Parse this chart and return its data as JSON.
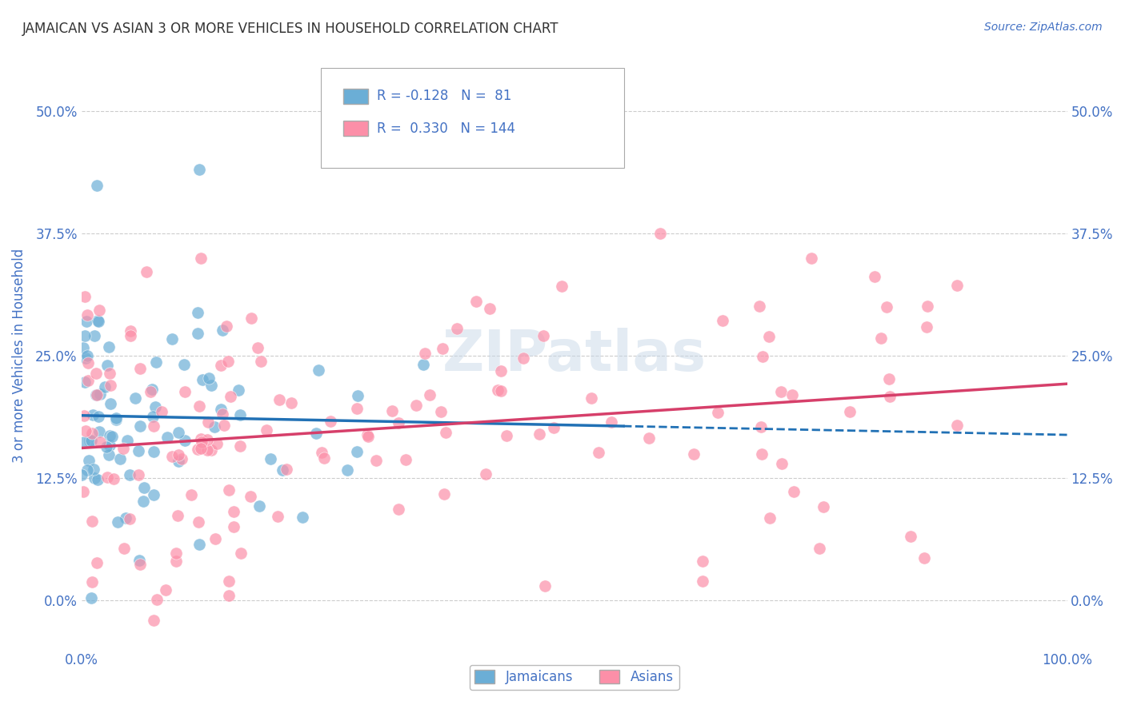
{
  "title": "JAMAICAN VS ASIAN 3 OR MORE VEHICLES IN HOUSEHOLD CORRELATION CHART",
  "source": "Source: ZipAtlas.com",
  "ylabel": "3 or more Vehicles in Household",
  "xlabel_ticks": [
    "0.0%",
    "100.0%"
  ],
  "ytick_labels": [
    "0.0%",
    "12.5%",
    "25.0%",
    "37.5%",
    "50.0%"
  ],
  "ytick_values": [
    0.0,
    12.5,
    25.0,
    37.5,
    50.0
  ],
  "xlim": [
    0.0,
    100.0
  ],
  "ylim": [
    -5.0,
    55.0
  ],
  "jamaican_color": "#6baed6",
  "asian_color": "#fc8fa8",
  "jamaican_line_color": "#2171b5",
  "asian_line_color": "#d63f6a",
  "jamaican_R": -0.128,
  "jamaican_N": 81,
  "asian_R": 0.33,
  "asian_N": 144,
  "legend_label_jamaicans": "Jamaicans",
  "legend_label_asians": "Asians",
  "legend_R1": "R = -0.128",
  "legend_N1": "N =  81",
  "legend_R2": "R =  0.330",
  "legend_N2": "N = 144",
  "watermark": "ZIPatlas",
  "background_color": "#ffffff",
  "grid_color": "#cccccc",
  "title_color": "#333333",
  "axis_label_color": "#4472c4",
  "tick_label_color": "#4472c4"
}
